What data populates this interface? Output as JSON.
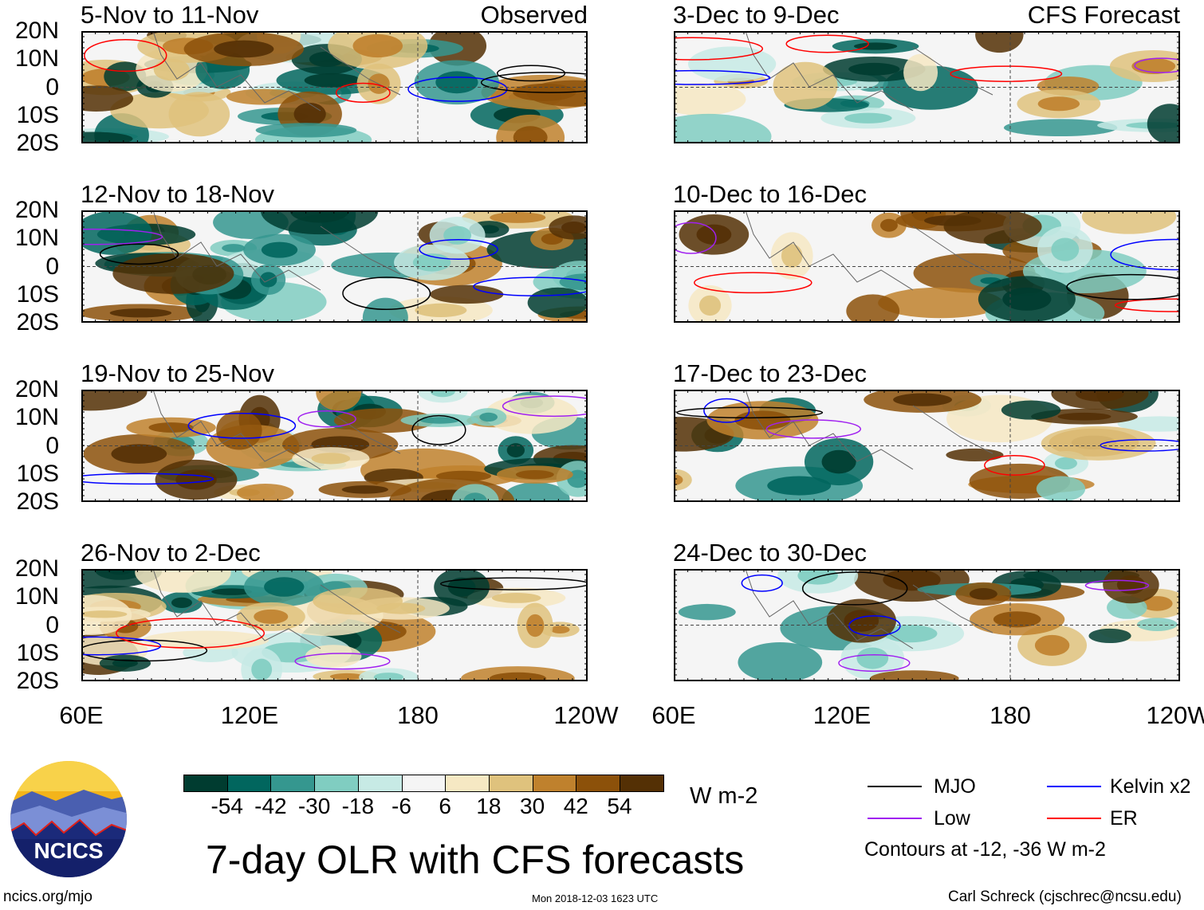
{
  "panels_left": [
    {
      "title": "5-Nov to 11-Nov",
      "label": "Observed"
    },
    {
      "title": "12-Nov to 18-Nov",
      "label": ""
    },
    {
      "title": "19-Nov to 25-Nov",
      "label": ""
    },
    {
      "title": "26-Nov to 2-Dec",
      "label": ""
    }
  ],
  "panels_right": [
    {
      "title": "3-Dec to 9-Dec",
      "label": "CFS Forecast"
    },
    {
      "title": "10-Dec to 16-Dec",
      "label": ""
    },
    {
      "title": "17-Dec to 23-Dec",
      "label": ""
    },
    {
      "title": "24-Dec to 30-Dec",
      "label": ""
    }
  ],
  "lat_labels": [
    "20N",
    "10N",
    "0",
    "10S",
    "20S"
  ],
  "lon_labels": [
    "60E",
    "120E",
    "180",
    "120W"
  ],
  "colorbar": {
    "levels": [
      "-54",
      "-42",
      "-30",
      "-18",
      "-6",
      "6",
      "18",
      "30",
      "42",
      "54"
    ],
    "colors": [
      "#003c30",
      "#01665e",
      "#35978f",
      "#80cdc1",
      "#c7eae5",
      "#f5f5f5",
      "#f6e8c3",
      "#dfc27d",
      "#bf812d",
      "#8c510a",
      "#543005"
    ],
    "units": "W m-2"
  },
  "title": "7-day OLR with CFS forecasts",
  "legend": {
    "items": [
      {
        "label": "MJO",
        "color": "#000000"
      },
      {
        "label": "Kelvin x2",
        "color": "#0000ff"
      },
      {
        "label": "Low",
        "color": "#a020f0"
      },
      {
        "label": "ER",
        "color": "#ff0000"
      }
    ],
    "note": "Contours at -12, -36 W m-2"
  },
  "logo": {
    "text": "NCICS"
  },
  "footer": {
    "url": "ncics.org/mjo",
    "timestamp": "Mon 2018-12-03 1623 UTC",
    "credit": "Carl Schreck (cjschrec@ncsu.edu)"
  }
}
